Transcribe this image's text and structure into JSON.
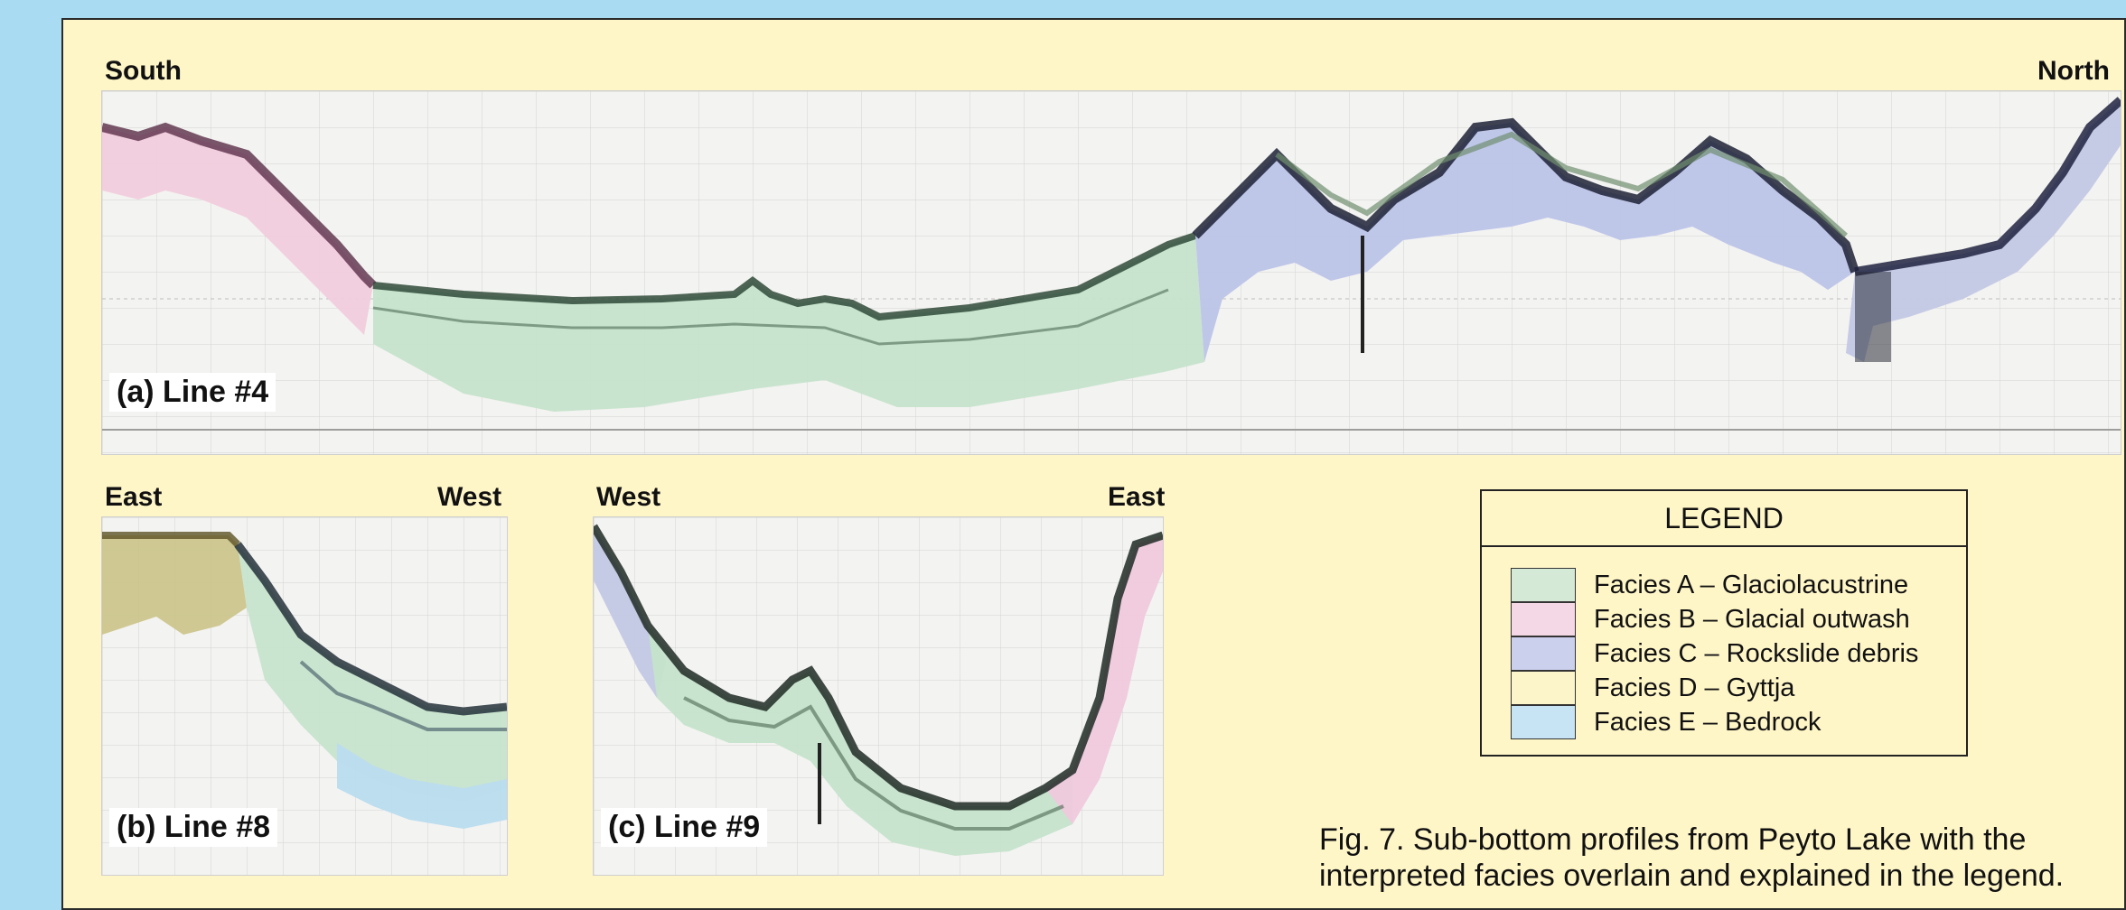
{
  "profiles": {
    "line4": {
      "label": "(a) Line #4",
      "left_dir": "South",
      "right_dir": "North"
    },
    "line8": {
      "label": "(b) Line #8",
      "left_dir": "East",
      "right_dir": "West"
    },
    "line9": {
      "label": "(c) Line #9",
      "left_dir": "West",
      "right_dir": "East"
    }
  },
  "legend": {
    "title": "LEGEND",
    "items": [
      {
        "label": "Facies A – Glaciolacustrine",
        "color": "#d4ead7"
      },
      {
        "label": "Facies B – Glacial outwash",
        "color": "#f5d8e6"
      },
      {
        "label": "Facies C – Rockslide debris",
        "color": "#cbd0ec"
      },
      {
        "label": "Facies D – Gyttja",
        "color": "#fbf5c9"
      },
      {
        "label": "Facies E – Bedrock",
        "color": "#c7e4f4"
      }
    ]
  },
  "caption": {
    "line1": "Fig. 7.  Sub-bottom profiles from Peyto Lake with the",
    "line2": "interpreted facies overlain and explained in the legend."
  },
  "colors": {
    "background": "#a9dcf3",
    "panel": "#fff6c8",
    "facies_a": "#d4ead7",
    "facies_b": "#f5d8e6",
    "facies_c": "#cbd0ec",
    "facies_d": "#fbf5c9",
    "facies_e": "#c7e4f4"
  }
}
